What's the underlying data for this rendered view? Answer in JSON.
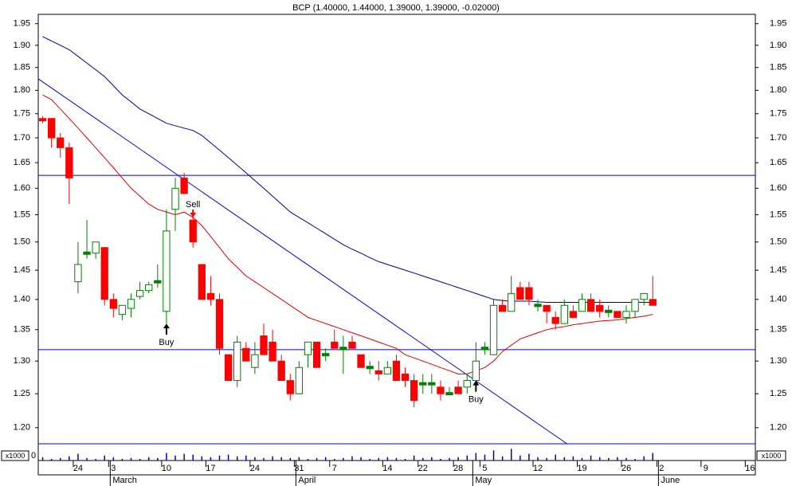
{
  "chart_data": {
    "type": "candlestick",
    "title": "BCP (1.40000, 1.44000, 1.39000, 1.39000, -0.02000)",
    "log_scale": true,
    "ylim": [
      1.177,
      1.972
    ],
    "yticks": [
      {
        "value": 1.2,
        "label": "1.20"
      },
      1.25,
      {
        "value": 1.3,
        "label": "1.30"
      },
      1.35,
      {
        "value": 1.4,
        "label": "1.40"
      },
      1.45,
      {
        "value": 1.5,
        "label": "1.50"
      },
      1.55,
      {
        "value": 1.6,
        "label": "1.60"
      },
      1.65,
      {
        "value": 1.7,
        "label": "1.70"
      },
      1.75,
      {
        "value": 1.8,
        "label": "1.80"
      },
      1.85,
      {
        "value": 1.9,
        "label": "1.90"
      },
      1.95
    ],
    "xlim": [
      -0.5,
      80.6
    ],
    "xticks": [
      {
        "value": 4,
        "label": "24"
      },
      {
        "value": 8,
        "label": "3"
      },
      {
        "value": 14,
        "label": "10"
      },
      {
        "value": 19,
        "label": "17"
      },
      {
        "value": 24,
        "label": "24"
      },
      {
        "value": 29,
        "label": "31"
      },
      {
        "value": 33,
        "label": "7"
      },
      {
        "value": 39,
        "label": "14"
      },
      {
        "value": 43,
        "label": "22"
      },
      {
        "value": 47,
        "label": "28"
      },
      {
        "value": 50,
        "label": "5"
      },
      {
        "value": 56,
        "label": "12"
      },
      {
        "value": 61,
        "label": "19"
      },
      {
        "value": 66,
        "label": "26"
      },
      {
        "value": 70,
        "label": "2"
      },
      {
        "value": 75,
        "label": "9"
      },
      {
        "value": 80,
        "label": "16"
      }
    ],
    "months": [
      {
        "value": 8,
        "label": "March"
      },
      {
        "value": 29,
        "label": "April"
      },
      {
        "value": 49,
        "label": "May"
      },
      {
        "value": 70,
        "label": "June"
      }
    ],
    "up_color": "#008000",
    "down_color": "#ff0000",
    "open": [
      1.74,
      1.74,
      1.7,
      1.68,
      1.43,
      1.48,
      1.48,
      1.49,
      1.4,
      1.375,
      1.385,
      1.405,
      1.415,
      1.43,
      1.38,
      1.56,
      1.62,
      1.54,
      1.46,
      1.41,
      1.4,
      1.31,
      1.27,
      1.32,
      1.29,
      1.34,
      1.33,
      1.3,
      1.27,
      1.25,
      1.31,
      1.33,
      1.31,
      1.33,
      1.32,
      1.33,
      1.31,
      1.29,
      1.285,
      1.28,
      1.3,
      1.28,
      1.27,
      1.265,
      1.265,
      1.26,
      1.25,
      1.26,
      1.26,
      1.27,
      1.32,
      1.31,
      1.39,
      1.38,
      1.42,
      1.42,
      1.39,
      1.39,
      1.37,
      1.36,
      1.38,
      1.38,
      1.4,
      1.39,
      1.38,
      1.38,
      1.37,
      1.38,
      1.4,
      1.4
    ],
    "high": [
      1.745,
      1.74,
      1.71,
      1.69,
      1.5,
      1.54,
      1.5,
      1.49,
      1.41,
      1.39,
      1.41,
      1.43,
      1.43,
      1.46,
      1.56,
      1.62,
      1.63,
      1.55,
      1.46,
      1.44,
      1.41,
      1.31,
      1.34,
      1.33,
      1.33,
      1.36,
      1.35,
      1.31,
      1.28,
      1.3,
      1.33,
      1.33,
      1.32,
      1.35,
      1.34,
      1.34,
      1.31,
      1.3,
      1.3,
      1.3,
      1.31,
      1.29,
      1.28,
      1.28,
      1.28,
      1.27,
      1.26,
      1.27,
      1.28,
      1.33,
      1.33,
      1.4,
      1.4,
      1.44,
      1.43,
      1.43,
      1.4,
      1.39,
      1.38,
      1.4,
      1.39,
      1.41,
      1.41,
      1.4,
      1.39,
      1.38,
      1.39,
      1.4,
      1.41,
      1.44
    ],
    "low": [
      1.73,
      1.68,
      1.66,
      1.57,
      1.41,
      1.47,
      1.47,
      1.39,
      1.37,
      1.365,
      1.37,
      1.4,
      1.41,
      1.42,
      1.36,
      1.52,
      1.59,
      1.49,
      1.4,
      1.39,
      1.31,
      1.27,
      1.26,
      1.3,
      1.28,
      1.31,
      1.3,
      1.27,
      1.24,
      1.25,
      1.29,
      1.29,
      1.3,
      1.32,
      1.28,
      1.32,
      1.29,
      1.28,
      1.27,
      1.28,
      1.27,
      1.26,
      1.23,
      1.25,
      1.25,
      1.24,
      1.25,
      1.25,
      1.25,
      1.27,
      1.31,
      1.31,
      1.38,
      1.38,
      1.4,
      1.39,
      1.38,
      1.36,
      1.35,
      1.36,
      1.37,
      1.38,
      1.38,
      1.37,
      1.37,
      1.37,
      1.36,
      1.37,
      1.39,
      1.39
    ],
    "close": [
      1.735,
      1.7,
      1.68,
      1.62,
      1.46,
      1.48,
      1.5,
      1.4,
      1.385,
      1.39,
      1.4,
      1.415,
      1.425,
      1.43,
      1.52,
      1.6,
      1.59,
      1.5,
      1.4,
      1.4,
      1.32,
      1.27,
      1.33,
      1.3,
      1.31,
      1.31,
      1.3,
      1.27,
      1.25,
      1.29,
      1.33,
      1.29,
      1.31,
      1.32,
      1.32,
      1.32,
      1.29,
      1.29,
      1.28,
      1.29,
      1.27,
      1.27,
      1.24,
      1.265,
      1.265,
      1.25,
      1.25,
      1.25,
      1.27,
      1.3,
      1.32,
      1.39,
      1.38,
      1.41,
      1.4,
      1.4,
      1.39,
      1.38,
      1.36,
      1.39,
      1.37,
      1.4,
      1.38,
      1.38,
      1.38,
      1.37,
      1.38,
      1.4,
      1.41,
      1.39
    ],
    "moving_averages": [
      {
        "color": "#e00000",
        "values": [
          1.79,
          1.78,
          1.76,
          1.74,
          1.72,
          1.7,
          1.68,
          1.66,
          1.64,
          1.62,
          1.6,
          1.585,
          1.57,
          1.56,
          1.555,
          1.55,
          1.555,
          1.545,
          1.53,
          1.51,
          1.49,
          1.47,
          1.455,
          1.44,
          1.43,
          1.42,
          1.41,
          1.4,
          1.39,
          1.38,
          1.37,
          1.365,
          1.36,
          1.355,
          1.35,
          1.345,
          1.34,
          1.335,
          1.33,
          1.325,
          1.32,
          1.31,
          1.305,
          1.3,
          1.295,
          1.29,
          1.285,
          1.28,
          1.28,
          1.285,
          1.29,
          1.3,
          1.315,
          1.325,
          1.335,
          1.34,
          1.345,
          1.35,
          1.353,
          1.355,
          1.358,
          1.36,
          1.362,
          1.364,
          1.365,
          1.366,
          1.368,
          1.37,
          1.372,
          1.375
        ]
      },
      {
        "color": "#00008b",
        "values": [
          1.92,
          1.91,
          1.9,
          1.89,
          1.875,
          1.86,
          1.845,
          1.83,
          1.81,
          1.79,
          1.775,
          1.76,
          1.75,
          1.74,
          1.73,
          1.725,
          1.72,
          1.715,
          1.705,
          1.69,
          1.675,
          1.66,
          1.645,
          1.63,
          1.615,
          1.6,
          1.585,
          1.57,
          1.555,
          1.545,
          1.535,
          1.525,
          1.515,
          1.505,
          1.495,
          1.487,
          1.48,
          1.472,
          1.465,
          1.46,
          1.455,
          1.45,
          1.445,
          1.44,
          1.435,
          1.43,
          1.425,
          1.42,
          1.415,
          1.41,
          1.405,
          1.4,
          1.398,
          1.397,
          1.397,
          1.397,
          1.396,
          1.395,
          1.395,
          1.395,
          1.395,
          1.395,
          1.395,
          1.395,
          1.395,
          1.395,
          1.395,
          1.395,
          1.395,
          1.395
        ]
      }
    ],
    "trendlines": [
      {
        "color": "#0000cd",
        "x": [
          -0.5,
          59.3
        ],
        "y": [
          1.825,
          1.177
        ]
      }
    ],
    "hlines": [
      {
        "color": "#0000cd",
        "value": 1.625
      },
      {
        "color": "#0000cd",
        "value": 1.318
      }
    ],
    "annotations": [
      {
        "text": "Buy",
        "x": 14,
        "y": 1.36,
        "dir": "up"
      },
      {
        "text": "Sell",
        "x": 17,
        "y": 1.545,
        "dir": "down"
      },
      {
        "text": "Buy",
        "x": 49,
        "y": 1.27,
        "dir": "up"
      }
    ],
    "volume_label": "x1000",
    "volume_ylim": [
      0,
      20
    ],
    "volume_yticks": [
      0
    ],
    "volume_color": "#0000cd",
    "volume": [
      4,
      2,
      3,
      5,
      8,
      3,
      2,
      6,
      4,
      2,
      3,
      2,
      4,
      3,
      9,
      6,
      8,
      7,
      5,
      4,
      6,
      7,
      5,
      6,
      4,
      3,
      5,
      4,
      3,
      4,
      2,
      3,
      4,
      2,
      3,
      5,
      4,
      2,
      3,
      4,
      3,
      2,
      6,
      3,
      4,
      2,
      3,
      4,
      6,
      9,
      7,
      12,
      5,
      14,
      6,
      8,
      4,
      3,
      7,
      4,
      5,
      3,
      6,
      4,
      3,
      4,
      3,
      2,
      5,
      9
    ]
  }
}
